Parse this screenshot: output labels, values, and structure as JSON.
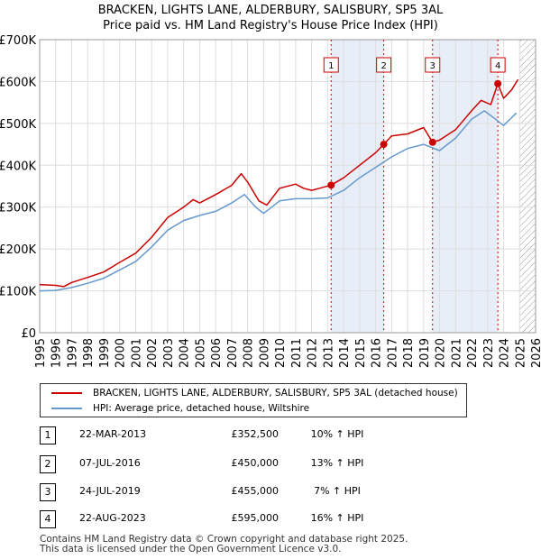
{
  "title_line1": "BRACKEN, LIGHTS LANE, ALDERBURY, SALISBURY, SP5 3AL",
  "title_line2": "Price paid vs. HM Land Registry's House Price Index (HPI)",
  "colors": {
    "property": "#cc0000",
    "hpi": "#6699cc",
    "shade": "#e8eef8",
    "sale_line": "#cc0000",
    "grid": "#dddddd",
    "hatch": "#999999"
  },
  "chart_data": {
    "type": "line",
    "title": "BRACKEN, LIGHTS LANE, ALDERBURY, SALISBURY, SP5 3AL — Price paid vs. HM Land Registry's House Price Index (HPI)",
    "xlabel": "",
    "ylabel": "",
    "xlim": [
      1995,
      2026
    ],
    "ylim": [
      0,
      700000
    ],
    "x_ticks": [
      "1995",
      "1996",
      "1997",
      "1998",
      "1999",
      "2000",
      "2001",
      "2002",
      "2003",
      "2004",
      "2005",
      "2006",
      "2007",
      "2008",
      "2009",
      "2010",
      "2011",
      "2012",
      "2013",
      "2014",
      "2015",
      "2016",
      "2017",
      "2018",
      "2019",
      "2020",
      "2021",
      "2022",
      "2023",
      "2024",
      "2025",
      "2026"
    ],
    "y_ticks": [
      {
        "value": 0,
        "label": "£0"
      },
      {
        "value": 100000,
        "label": "£100K"
      },
      {
        "value": 200000,
        "label": "£200K"
      },
      {
        "value": 300000,
        "label": "£300K"
      },
      {
        "value": 400000,
        "label": "£400K"
      },
      {
        "value": 500000,
        "label": "£500K"
      },
      {
        "value": 600000,
        "label": "£600K"
      },
      {
        "value": 700000,
        "label": "£700K"
      }
    ],
    "grid": true,
    "shaded_periods": [
      [
        2013.22,
        2016.51
      ],
      [
        2019.56,
        2023.64
      ]
    ],
    "future_hatch_from": 2025.0,
    "series": [
      {
        "name": "BRACKEN, LIGHTS LANE, ALDERBURY, SALISBURY, SP5 3AL (detached house)",
        "color": "#cc0000",
        "points": [
          [
            1995,
            115000
          ],
          [
            1996,
            113000
          ],
          [
            1996.5,
            110000
          ],
          [
            1997,
            120000
          ],
          [
            1998,
            132000
          ],
          [
            1999,
            145000
          ],
          [
            2000,
            168000
          ],
          [
            2001,
            190000
          ],
          [
            2002,
            228000
          ],
          [
            2003,
            275000
          ],
          [
            2004,
            300000
          ],
          [
            2004.6,
            318000
          ],
          [
            2005,
            310000
          ],
          [
            2006,
            330000
          ],
          [
            2007,
            352000
          ],
          [
            2007.6,
            380000
          ],
          [
            2008,
            360000
          ],
          [
            2008.7,
            315000
          ],
          [
            2009.2,
            305000
          ],
          [
            2010,
            345000
          ],
          [
            2011,
            355000
          ],
          [
            2011.5,
            345000
          ],
          [
            2012,
            340000
          ],
          [
            2012.5,
            345000
          ],
          [
            2013.22,
            352500
          ],
          [
            2014,
            370000
          ],
          [
            2015,
            400000
          ],
          [
            2016,
            430000
          ],
          [
            2016.51,
            450000
          ],
          [
            2017,
            470000
          ],
          [
            2018,
            475000
          ],
          [
            2019,
            490000
          ],
          [
            2019.56,
            455000
          ],
          [
            2020,
            460000
          ],
          [
            2021,
            485000
          ],
          [
            2022,
            530000
          ],
          [
            2022.6,
            555000
          ],
          [
            2023.2,
            545000
          ],
          [
            2023.64,
            595000
          ],
          [
            2024,
            560000
          ],
          [
            2024.5,
            580000
          ],
          [
            2024.9,
            605000
          ]
        ]
      },
      {
        "name": "HPI: Average price, detached house, Wiltshire",
        "color": "#6699cc",
        "points": [
          [
            1995,
            100000
          ],
          [
            1996,
            101000
          ],
          [
            1997,
            108000
          ],
          [
            1998,
            118000
          ],
          [
            1999,
            130000
          ],
          [
            2000,
            150000
          ],
          [
            2001,
            170000
          ],
          [
            2002,
            205000
          ],
          [
            2003,
            245000
          ],
          [
            2004,
            268000
          ],
          [
            2005,
            280000
          ],
          [
            2006,
            290000
          ],
          [
            2007,
            310000
          ],
          [
            2007.8,
            330000
          ],
          [
            2008.5,
            300000
          ],
          [
            2009,
            285000
          ],
          [
            2010,
            315000
          ],
          [
            2011,
            320000
          ],
          [
            2012,
            320000
          ],
          [
            2013,
            322000
          ],
          [
            2014,
            340000
          ],
          [
            2015,
            370000
          ],
          [
            2016,
            395000
          ],
          [
            2017,
            420000
          ],
          [
            2018,
            440000
          ],
          [
            2019,
            450000
          ],
          [
            2020,
            435000
          ],
          [
            2021,
            465000
          ],
          [
            2022,
            510000
          ],
          [
            2022.8,
            530000
          ],
          [
            2023.5,
            510000
          ],
          [
            2024,
            495000
          ],
          [
            2024.8,
            525000
          ]
        ]
      }
    ],
    "sales": [
      {
        "marker": "1",
        "year": 2013.22,
        "price": 352500
      },
      {
        "marker": "2",
        "year": 2016.51,
        "price": 450000
      },
      {
        "marker": "3",
        "year": 2019.56,
        "price": 455000
      },
      {
        "marker": "4",
        "year": 2023.64,
        "price": 595000
      }
    ]
  },
  "legend": {
    "property_label": "BRACKEN, LIGHTS LANE, ALDERBURY, SALISBURY, SP5 3AL (detached house)",
    "hpi_label": "HPI: Average price, detached house, Wiltshire"
  },
  "sales_table": [
    {
      "num": "1",
      "date": "22-MAR-2013",
      "price": "£352,500",
      "hpi": "10% ↑ HPI"
    },
    {
      "num": "2",
      "date": "07-JUL-2016",
      "price": "£450,000",
      "hpi": "13% ↑ HPI"
    },
    {
      "num": "3",
      "date": "24-JUL-2019",
      "price": "£455,000",
      "hpi": "7% ↑ HPI"
    },
    {
      "num": "4",
      "date": "22-AUG-2023",
      "price": "£595,000",
      "hpi": "16% ↑ HPI"
    }
  ],
  "footer_line1": "Contains HM Land Registry data © Crown copyright and database right 2025.",
  "footer_line2": "This data is licensed under the Open Government Licence v3.0."
}
